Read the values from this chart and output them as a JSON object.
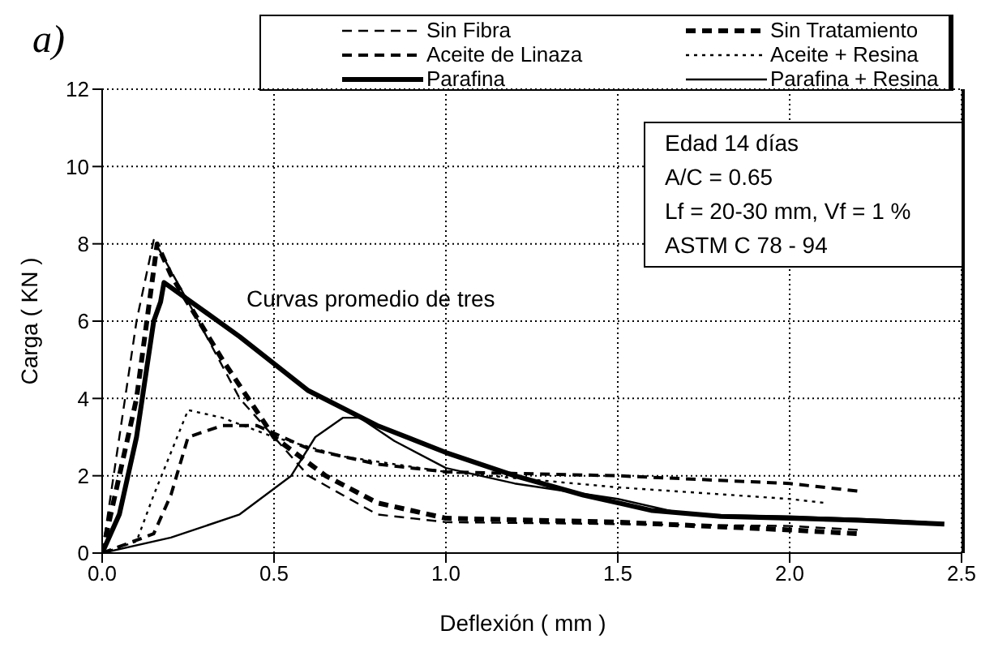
{
  "chart_data": {
    "type": "line",
    "xlabel": "Deflexión ( mm )",
    "ylabel": "Carga ( KN )",
    "xlim": [
      0,
      2.5
    ],
    "xticks": [
      {
        "value": 0,
        "label": "0.0"
      },
      {
        "value": 0.5,
        "label": "0.5"
      },
      {
        "value": 1,
        "label": "1.0"
      },
      {
        "value": 1.5,
        "label": "1.5"
      },
      {
        "value": 2,
        "label": "2.0"
      },
      {
        "value": 2.5,
        "label": "2.5"
      }
    ],
    "ylim": [
      0,
      12
    ],
    "yticks": [
      0,
      2,
      4,
      6,
      8,
      10,
      12
    ],
    "grid": true,
    "legend": "top",
    "marker": "none",
    "annotations": [
      "a)",
      "Curvas promedio de tres",
      "Edad 14 días",
      "A/C = 0.65",
      "Lf = 20-30 mm, Vf = 1 %",
      "ASTM C 78 - 94"
    ],
    "series": [
      {
        "name": "Sin Fibra",
        "color": "#000000",
        "line_style": "dashed",
        "x": [
          0,
          0.05,
          0.1,
          0.15,
          0.25,
          0.4,
          0.6,
          0.8,
          1.0,
          1.5,
          2.0,
          2.2
        ],
        "values": [
          0,
          3,
          6,
          8.1,
          6.5,
          4,
          2,
          1,
          0.8,
          0.75,
          0.7,
          0.6
        ]
      },
      {
        "name": "Sin Tratamiento",
        "color": "#000000",
        "line_style": "dashed",
        "x": [
          0,
          0.1,
          0.16,
          0.2,
          0.35,
          0.5,
          0.65,
          0.8,
          1.0,
          1.5,
          2.0,
          2.2
        ],
        "values": [
          0,
          4,
          8,
          7.2,
          5,
          3,
          2,
          1.3,
          0.9,
          0.8,
          0.6,
          0.5
        ]
      },
      {
        "name": "Aceite de Linaza",
        "color": "#000000",
        "line_style": "dashed",
        "x": [
          0,
          0.15,
          0.2,
          0.25,
          0.35,
          0.45,
          0.6,
          0.8,
          1.0,
          1.5,
          2.0,
          2.2
        ],
        "values": [
          0,
          0.5,
          1.5,
          3,
          3.3,
          3.3,
          2.7,
          2.3,
          2.1,
          2,
          1.8,
          1.6
        ]
      },
      {
        "name": "Aceite + Resina",
        "color": "#000000",
        "line_style": "dotted",
        "x": [
          0,
          0.1,
          0.15,
          0.25,
          0.35,
          0.5,
          0.7,
          1.0,
          1.5,
          2.0,
          2.1
        ],
        "values": [
          0,
          0.3,
          1.5,
          3.7,
          3.5,
          3,
          2.5,
          2.1,
          1.7,
          1.4,
          1.3
        ]
      },
      {
        "name": "Parafina",
        "color": "#000000",
        "line_style": "solid",
        "x": [
          0,
          0.05,
          0.1,
          0.15,
          0.17,
          0.18,
          0.4,
          0.6,
          0.8,
          1.0,
          1.2,
          1.4,
          1.6,
          1.8,
          2.0,
          2.2,
          2.45
        ],
        "values": [
          0,
          1,
          3,
          6,
          6.5,
          7,
          5.6,
          4.2,
          3.3,
          2.6,
          2,
          1.5,
          1.1,
          0.95,
          0.9,
          0.85,
          0.75
        ]
      },
      {
        "name": "Parafina + Resina",
        "color": "#000000",
        "line_style": "solid",
        "x": [
          0,
          0.2,
          0.4,
          0.55,
          0.62,
          0.7,
          0.75,
          0.85,
          1.0,
          1.2,
          1.5,
          1.7,
          2.0,
          2.3,
          2.4
        ],
        "values": [
          0,
          0.4,
          1,
          2,
          3,
          3.5,
          3.5,
          2.9,
          2.2,
          1.8,
          1.4,
          1,
          0.95,
          0.85,
          0.8
        ]
      }
    ]
  }
}
